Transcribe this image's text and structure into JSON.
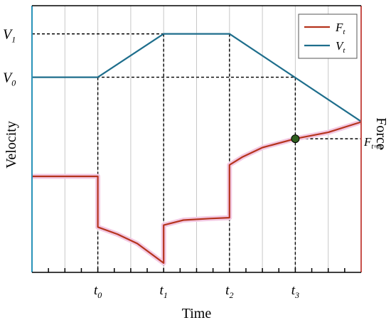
{
  "chart_data": {
    "type": "line",
    "xlabel": "Time",
    "ylabel_left": "Velocity",
    "ylabel_right": "Force",
    "x_ticks": [
      {
        "label": "t",
        "sub": "0",
        "x": 1
      },
      {
        "label": "t",
        "sub": "1",
        "x": 2
      },
      {
        "label": "t",
        "sub": "2",
        "x": 3
      },
      {
        "label": "t",
        "sub": "3",
        "x": 4
      }
    ],
    "xlim": [
      0,
      5
    ],
    "velocity_levels": [
      {
        "label": "V",
        "sub": "1",
        "value": 1.0
      },
      {
        "label": "V",
        "sub": "0",
        "value": 0.0
      }
    ],
    "velocity_ylim": [
      -4.5,
      1.65
    ],
    "force_ylim": [
      0,
      10
    ],
    "grid_x": true,
    "legend_position": "top-right",
    "series": [
      {
        "name": "F",
        "sub": "t",
        "axis": "right",
        "color": "#b5341d",
        "points": [
          [
            0,
            3.6
          ],
          [
            1,
            3.6
          ],
          [
            1,
            1.7
          ],
          [
            1.3,
            1.43
          ],
          [
            1.6,
            1.08
          ],
          [
            2,
            0.35
          ],
          [
            2,
            1.77
          ],
          [
            2.3,
            1.96
          ],
          [
            2.7,
            2.02
          ],
          [
            3,
            2.05
          ],
          [
            3,
            4.03
          ],
          [
            3.2,
            4.33
          ],
          [
            3.5,
            4.68
          ],
          [
            4,
            5.01
          ],
          [
            4.5,
            5.25
          ],
          [
            5,
            5.64
          ]
        ]
      },
      {
        "name": "V",
        "sub": "t",
        "axis": "left",
        "color": "#1e6e8c",
        "points": [
          [
            0,
            0.0
          ],
          [
            1,
            0.0
          ],
          [
            2,
            1.0
          ],
          [
            3,
            1.0
          ],
          [
            5,
            -1.02
          ]
        ]
      }
    ],
    "annotation": {
      "marker": {
        "x": 4,
        "force": 5.01,
        "color": "#2f5f1f"
      },
      "label": "F",
      "sub": "t=t",
      "subsub": "3"
    },
    "colors": {
      "velocity_axis": "#2a93b9",
      "force_axis": "#c8504a",
      "grid": "#c8c8c8",
      "guide": "#000000"
    }
  }
}
